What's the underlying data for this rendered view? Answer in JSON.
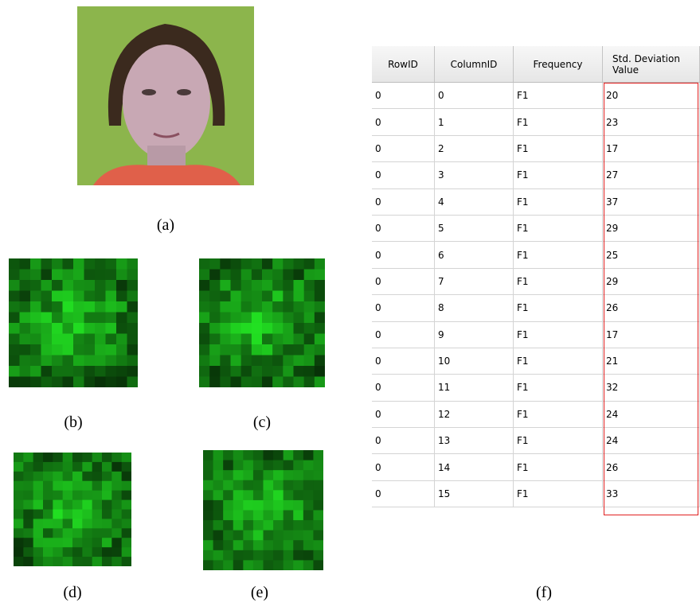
{
  "captions": {
    "a": "(a)",
    "b": "(b)",
    "c": "(c)",
    "d": "(d)",
    "e": "(e)",
    "f": "(f)"
  },
  "table": {
    "headers": [
      "RowID",
      "ColumnID",
      "Frequency",
      "Std. Deviation Value"
    ],
    "rows": [
      [
        0,
        0,
        "F1",
        20
      ],
      [
        0,
        1,
        "F1",
        23
      ],
      [
        0,
        2,
        "F1",
        17
      ],
      [
        0,
        3,
        "F1",
        27
      ],
      [
        0,
        4,
        "F1",
        37
      ],
      [
        0,
        5,
        "F1",
        29
      ],
      [
        0,
        6,
        "F1",
        25
      ],
      [
        0,
        7,
        "F1",
        29
      ],
      [
        0,
        8,
        "F1",
        26
      ],
      [
        0,
        9,
        "F1",
        17
      ],
      [
        0,
        10,
        "F1",
        21
      ],
      [
        0,
        11,
        "F1",
        32
      ],
      [
        0,
        12,
        "F1",
        24
      ],
      [
        0,
        13,
        "F1",
        24
      ],
      [
        0,
        14,
        "F1",
        26
      ],
      [
        0,
        15,
        "F1",
        33
      ]
    ]
  }
}
